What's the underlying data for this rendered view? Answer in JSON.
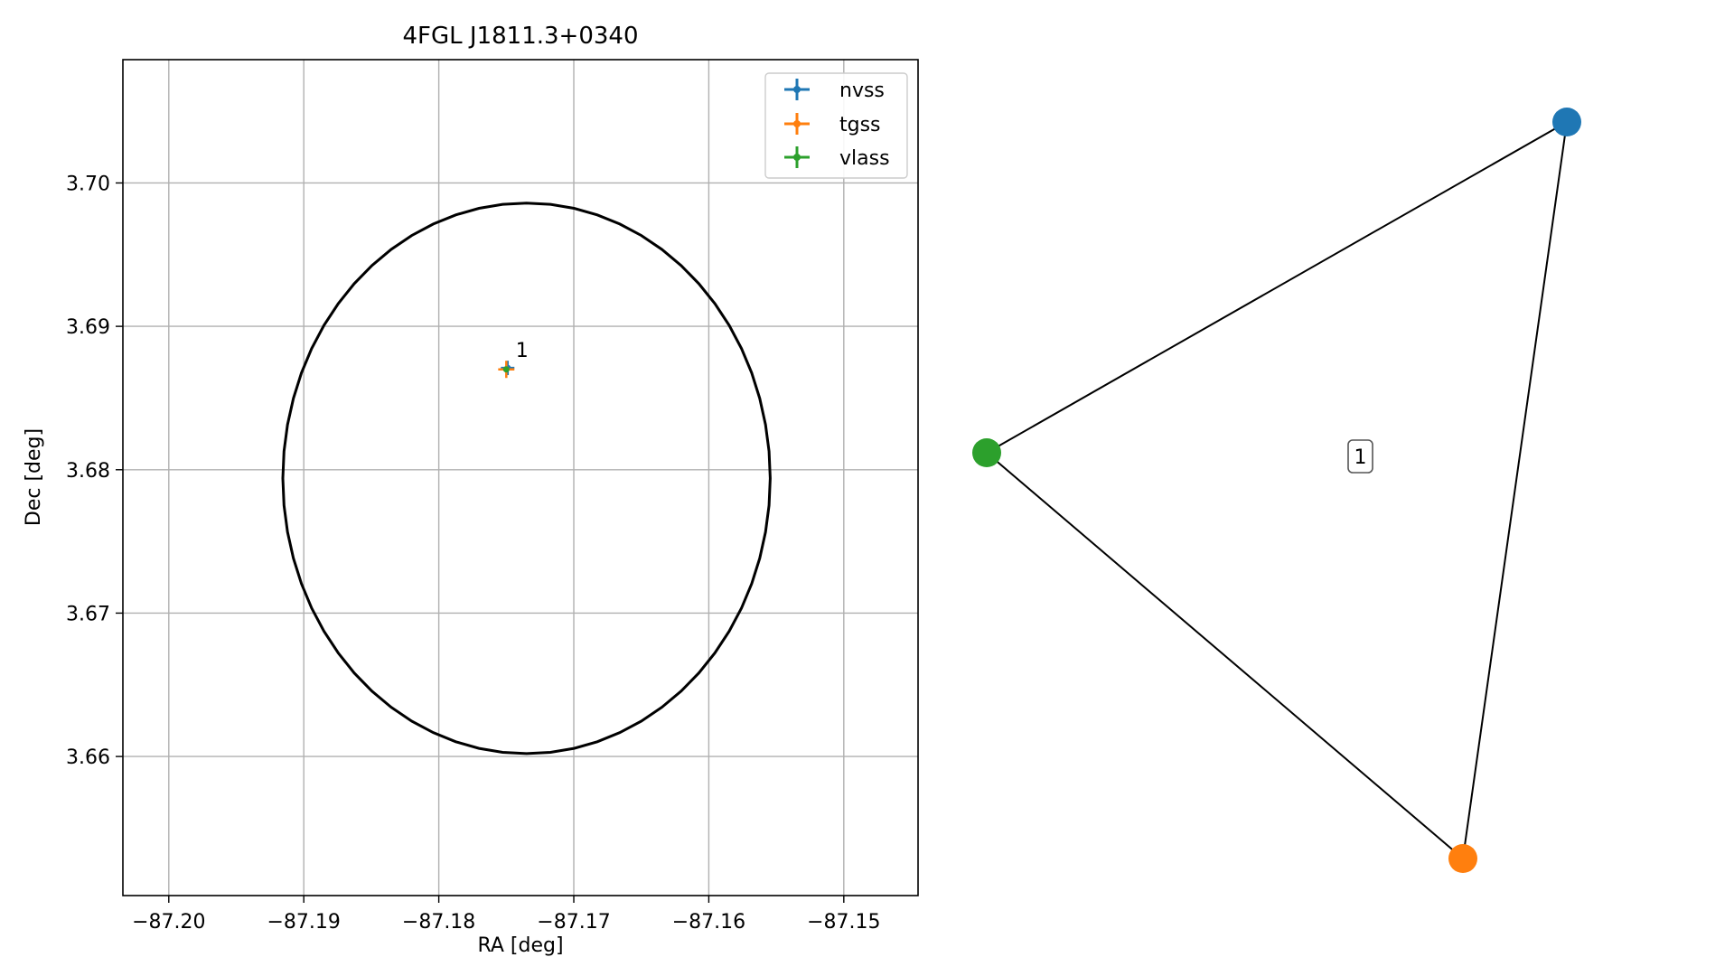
{
  "chart_data": [
    {
      "type": "scatter",
      "title": "4FGL J1811.3+0340",
      "xlabel": "RA [deg]",
      "ylabel": "Dec [deg]",
      "xlim": [
        -87.2034,
        -87.1445
      ],
      "ylim": [
        3.6503,
        3.7086
      ],
      "x_ticks": [
        -87.2,
        -87.19,
        -87.18,
        -87.17,
        -87.16,
        -87.15
      ],
      "x_tick_labels": [
        "−87.20",
        "−87.19",
        "−87.18",
        "−87.17",
        "−87.16",
        "−87.15"
      ],
      "y_ticks": [
        3.66,
        3.67,
        3.68,
        3.69,
        3.7
      ],
      "y_tick_labels": [
        "3.66",
        "3.67",
        "3.68",
        "3.69",
        "3.70"
      ],
      "grid": true,
      "legend_position": "top-right",
      "series": [
        {
          "name": "nvss",
          "color": "#1f77b4",
          "x": [
            -87.1749
          ],
          "y": [
            3.6871
          ],
          "xerr": [
            0.0005
          ],
          "yerr": [
            0.0005
          ]
        },
        {
          "name": "tgss",
          "color": "#ff7f0e",
          "x": [
            -87.175
          ],
          "y": [
            3.687
          ],
          "xerr": [
            0.0006
          ],
          "yerr": [
            0.0006
          ]
        },
        {
          "name": "vlass",
          "color": "#2ca02c",
          "x": [
            -87.175
          ],
          "y": [
            3.687
          ],
          "xerr": [
            0.0002
          ],
          "yerr": [
            0.0002
          ]
        }
      ],
      "ellipse": {
        "color": "#000000",
        "center_x": -87.1735,
        "center_y": 3.6794,
        "semi_axis_ra": 0.01805,
        "semi_axis_dec": 0.0192
      },
      "annotations": [
        {
          "text": "1",
          "x": -87.1743,
          "y": 3.6876
        }
      ]
    },
    {
      "type": "graph",
      "nodes": [
        {
          "id": "nvss",
          "color": "#1f77b4"
        },
        {
          "id": "vlass",
          "color": "#2ca02c"
        },
        {
          "id": "tgss",
          "color": "#ff7f0e"
        }
      ],
      "edges": [
        [
          "nvss",
          "vlass"
        ],
        [
          "vlass",
          "tgss"
        ],
        [
          "tgss",
          "nvss"
        ]
      ],
      "label": "1"
    }
  ]
}
